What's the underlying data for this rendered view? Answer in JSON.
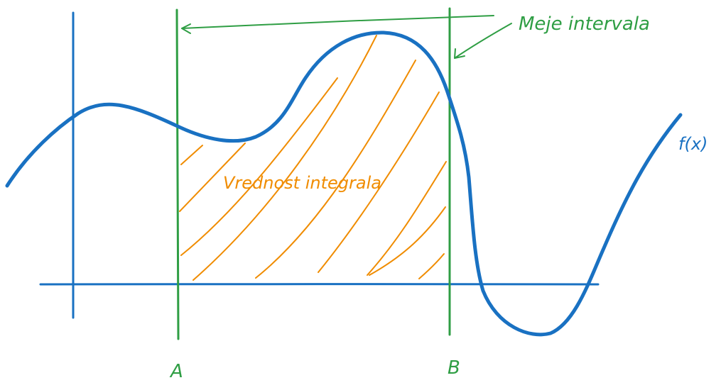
{
  "labels": {
    "interval_bounds": "Meje intervala",
    "integral_value": "Vrednost integrala",
    "function": "f(x)",
    "bound_a": "A",
    "bound_b": "B"
  },
  "colors": {
    "function": "#1971c2",
    "axes": "#1971c2",
    "bounds": "#2f9e44",
    "hatch": "#f08c00"
  }
}
